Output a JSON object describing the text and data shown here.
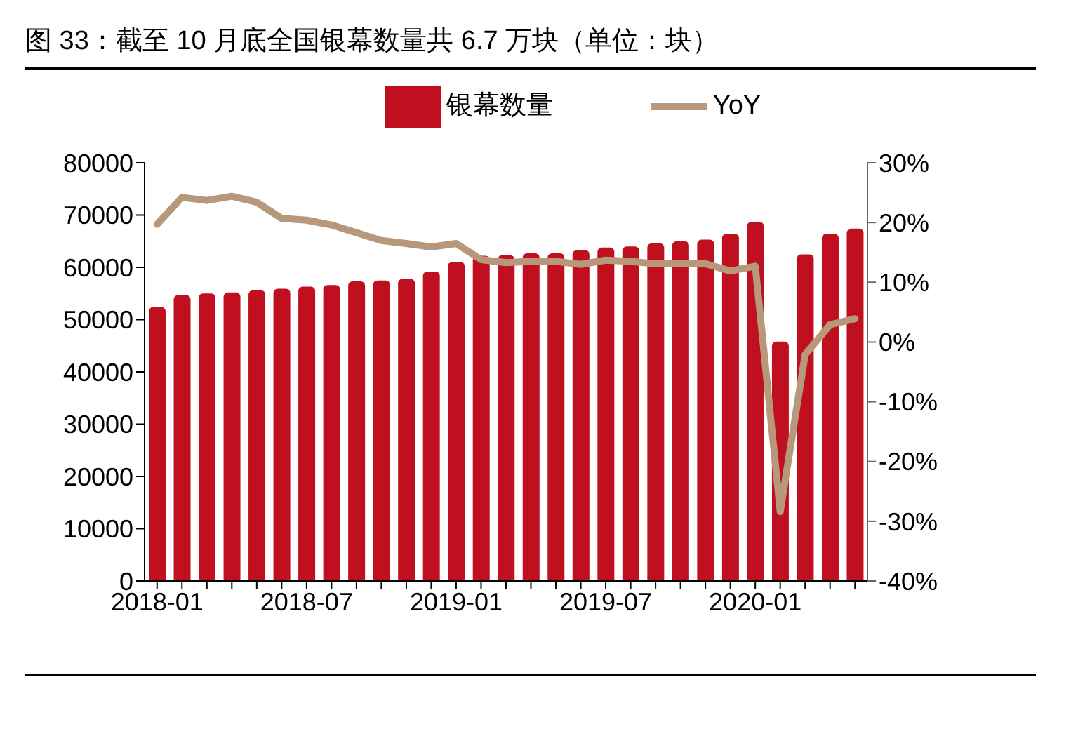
{
  "chart_data": {
    "type": "bar",
    "title": "图 33：截至 10 月底全国银幕数量共 6.7 万块（单位：块）",
    "categories": [
      "2018-01",
      null,
      null,
      null,
      null,
      null,
      "2018-07",
      null,
      null,
      null,
      null,
      null,
      "2019-01",
      null,
      null,
      null,
      null,
      null,
      "2019-07",
      null,
      null,
      null,
      null,
      null,
      "2020-01",
      null,
      null,
      null,
      null
    ],
    "series": [
      {
        "name": "银幕数量",
        "color": "#c00f1e",
        "values": [
          52400,
          54700,
          55000,
          55200,
          55600,
          55900,
          56300,
          56600,
          57300,
          57500,
          57800,
          59200,
          61000,
          62200,
          62300,
          62700,
          62700,
          63300,
          63800,
          64000,
          64600,
          65000,
          65300,
          66400,
          68700,
          45800,
          62500,
          66400,
          67400
        ]
      },
      {
        "name": "YoY",
        "type": "line",
        "axis": "y2",
        "color": "#b8987a",
        "values": [
          19.7,
          24.2,
          23.7,
          24.4,
          23.4,
          20.7,
          20.4,
          19.6,
          18.3,
          17.0,
          16.5,
          15.9,
          16.5,
          13.8,
          13.3,
          13.5,
          13.5,
          13.0,
          13.7,
          13.5,
          13.1,
          13.1,
          13.1,
          11.9,
          12.7,
          -28.4,
          -2.1,
          2.9,
          3.9
        ]
      }
    ],
    "ylim": [
      0,
      80000
    ],
    "yticks": [
      0,
      10000,
      20000,
      30000,
      40000,
      50000,
      60000,
      70000,
      80000
    ],
    "y2lim": [
      -40,
      30
    ],
    "y2ticks": [
      {
        "value": -40,
        "label": "-40%"
      },
      {
        "value": -30,
        "label": "-30%"
      },
      {
        "value": -20,
        "label": "-20%"
      },
      {
        "value": -10,
        "label": "-10%"
      },
      {
        "value": 0,
        "label": "0%"
      },
      {
        "value": 10,
        "label": "10%"
      },
      {
        "value": 20,
        "label": "20%"
      },
      {
        "value": 30,
        "label": "30%"
      }
    ],
    "legend": "top",
    "grid": false,
    "marker": "none",
    "line_style": "solid"
  }
}
